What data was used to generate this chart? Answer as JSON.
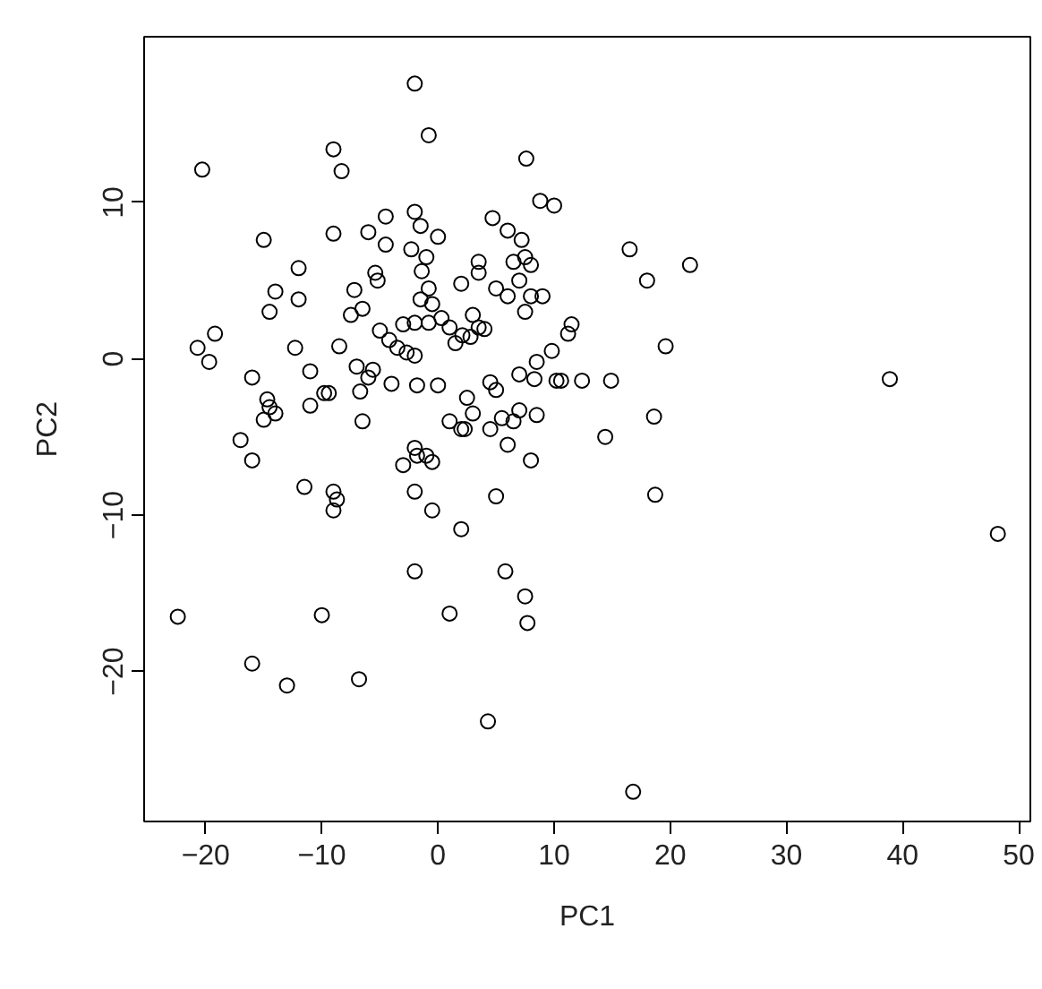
{
  "chart_data": {
    "type": "scatter",
    "xlabel": "PC1",
    "ylabel": "PC2",
    "marker": "circle",
    "grid": false,
    "xlim": [
      -25.3,
      51.0
    ],
    "ylim": [
      -29.6,
      20.6
    ],
    "xticks": [
      -20,
      -10,
      0,
      10,
      20,
      30,
      40,
      50
    ],
    "yticks": [
      -20,
      -10,
      0,
      10
    ],
    "series": [
      {
        "color": "#000000",
        "x": [
          -2,
          -0.8,
          -9.0,
          -20.3,
          -8.3,
          7.6,
          8.8,
          10.0,
          4.7,
          -4.5,
          -2.0,
          -9.0,
          -6.0,
          -1.5,
          0,
          6.0,
          7.2,
          -15.0,
          -12.0,
          -4.5,
          -2.3,
          -1.0,
          3.5,
          3.5,
          6.5,
          7.5,
          8.0,
          -5.4,
          -5.2,
          -1.4,
          -0.8,
          16.5,
          18.0,
          21.7,
          -14.0,
          -12.0,
          -7.2,
          -6.5,
          -1.5,
          -0.5,
          2.0,
          5.0,
          6.0,
          7.0,
          8.0,
          9.0,
          -14.5,
          -7.5,
          -5.0,
          -3.0,
          -2.0,
          -0.8,
          0.3,
          1.0,
          3.0,
          3.5,
          4.0,
          7.5,
          11.5,
          11.2,
          -19.2,
          -20.7,
          -19.7,
          -12.3,
          -8.5,
          -4.2,
          -3.5,
          -2.7,
          -2.0,
          1.5,
          2.1,
          2.8,
          8.5,
          9.8,
          19.6,
          -11.0,
          -7.0,
          -6.0,
          -5.6,
          -4.0,
          -1.8,
          0,
          4.5,
          5.0,
          7.0,
          8.3,
          10.2,
          10.6,
          12.4,
          14.9,
          38.9,
          -9.8,
          -9.4,
          -6.7,
          -14.7,
          -14.5,
          -11.0,
          -16.0,
          -14.0,
          -15,
          -6.5,
          2.5,
          5.5,
          7.0,
          3.0,
          18.6,
          -17.0,
          -16.0,
          -11.5,
          -9.0,
          -8.7,
          -9.0,
          -3.0,
          -1.0,
          2.0,
          2.3,
          4.5,
          6.5,
          8.0,
          14.4,
          -2.0,
          -1.8,
          -0.5,
          5.0,
          18.7,
          -2.0,
          -0.5,
          1.0,
          2.0,
          6.0,
          8.5,
          1.0,
          5.8,
          7.5,
          7.7,
          -10.0,
          -2.0,
          -22.4,
          -16.0,
          -13.0,
          -6.8,
          4.3,
          16.8,
          48.2
        ],
        "values": [
          17.6,
          14.3,
          13.4,
          12.1,
          12.0,
          12.8,
          10.1,
          9.8,
          9.0,
          9.1,
          9.4,
          8.0,
          8.1,
          8.5,
          7.8,
          8.2,
          7.6,
          7.6,
          5.8,
          7.3,
          7.0,
          6.5,
          6.2,
          5.5,
          6.2,
          6.5,
          6.0,
          5.5,
          5.0,
          5.6,
          4.5,
          7.0,
          5.0,
          6.0,
          4.3,
          3.8,
          4.4,
          3.2,
          3.8,
          3.5,
          4.8,
          4.5,
          4.0,
          5.0,
          4.0,
          4.0,
          3.0,
          2.8,
          1.8,
          2.2,
          2.3,
          2.3,
          2.6,
          2.0,
          2.8,
          2.0,
          1.9,
          3.0,
          2.2,
          1.6,
          1.6,
          0.7,
          -0.2,
          0.7,
          0.8,
          1.2,
          0.7,
          0.4,
          0.2,
          1.0,
          1.5,
          1.4,
          -0.2,
          0.5,
          0.8,
          -0.8,
          -0.5,
          -1.2,
          -0.7,
          -1.6,
          -1.7,
          -1.7,
          -1.5,
          -2.0,
          -1.0,
          -1.3,
          -1.4,
          -1.4,
          -1.4,
          -1.4,
          -1.3,
          -2.2,
          -2.2,
          -2.1,
          -2.6,
          -3.1,
          -3.0,
          -1.2,
          -3.5,
          -3.9,
          -4.0,
          -2.5,
          -3.8,
          -3.3,
          -3.5,
          -3.7,
          -5.2,
          -6.5,
          -8.2,
          -8.5,
          -9.0,
          -9.7,
          -6.8,
          -6.2,
          -4.5,
          -4.5,
          -4.5,
          -4.0,
          -6.5,
          -5.0,
          -5.7,
          -6.2,
          -6.6,
          -8.8,
          -8.7,
          -8.5,
          -9.7,
          -4.0,
          -10.9,
          -5.5,
          -3.6,
          -16.3,
          -13.6,
          -15.2,
          -16.9,
          -16.4,
          -13.6,
          -16.5,
          -19.5,
          -20.9,
          -20.5,
          -23.2,
          -27.7,
          -11.2
        ]
      }
    ]
  }
}
